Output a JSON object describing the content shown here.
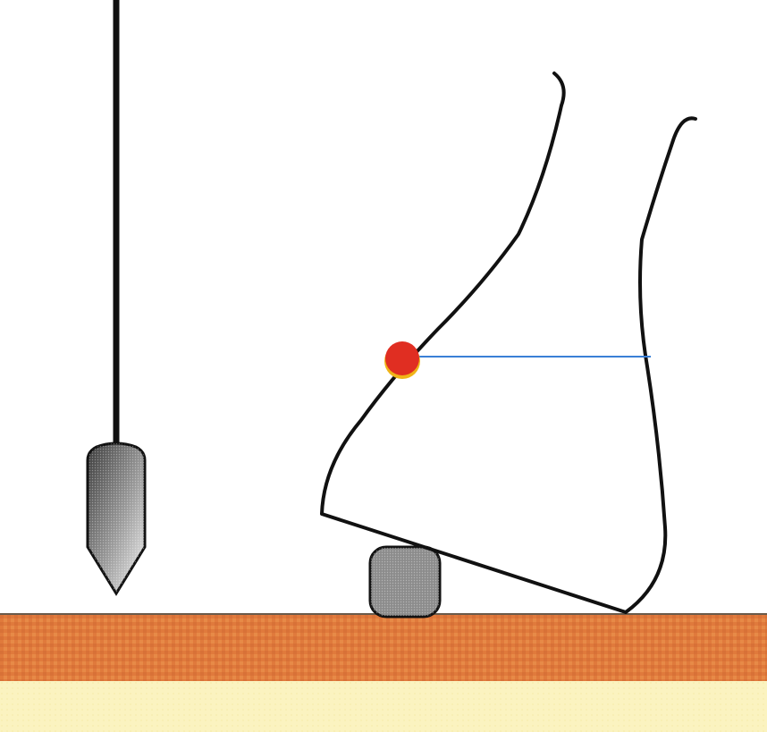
{
  "diagram": {
    "colors": {
      "background": "#ffffff",
      "outline": "#111111",
      "ground_top": "#d9763f",
      "ground_band": "#e0803c",
      "ground_edge": "#7a5a3a",
      "sand": "#fbf4c2",
      "marker_dot": "#e02e22",
      "marker_dot_rim": "#f0b418",
      "reference_line": "#3a7fd6",
      "block_fill": "#8a8a8a"
    }
  }
}
